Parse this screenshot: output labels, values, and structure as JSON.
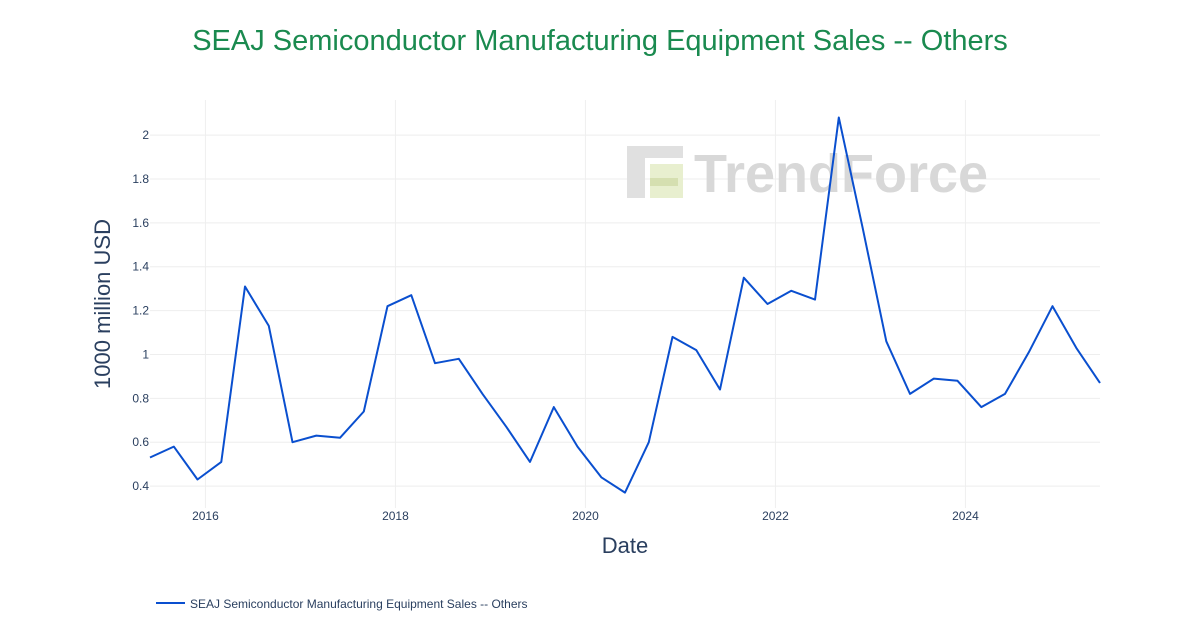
{
  "watermark": {
    "text": "TrendForce"
  },
  "colors": {
    "title": "#1a8a4f",
    "line": "#0a4fcf",
    "text": "#2a3f5f",
    "grid": "#eeeeee",
    "watermark": "#d8d8d8",
    "watermark_accent": "#e8efcf"
  },
  "chart_data": {
    "type": "line",
    "title": "SEAJ Semiconductor Manufacturing Equipment Sales -- Others",
    "xlabel": "Date",
    "ylabel": "1000 million USD",
    "x_ticks": [
      "2016",
      "2018",
      "2020",
      "2022",
      "2024"
    ],
    "y_ticks": [
      "0.4",
      "0.6",
      "0.8",
      "1",
      "1.2",
      "1.4",
      "1.6",
      "1.8",
      "2"
    ],
    "xlim": [
      "2015-06",
      "2025-06"
    ],
    "ylim": [
      0.3,
      2.16
    ],
    "grid": true,
    "legend_position": "bottom-left",
    "series": [
      {
        "name": "SEAJ Semiconductor Manufacturing Equipment Sales -- Others",
        "x": [
          "2015-06",
          "2015-09",
          "2015-12",
          "2016-03",
          "2016-06",
          "2016-09",
          "2016-12",
          "2017-03",
          "2017-06",
          "2017-09",
          "2017-12",
          "2018-03",
          "2018-06",
          "2018-09",
          "2018-12",
          "2019-03",
          "2019-06",
          "2019-09",
          "2019-12",
          "2020-03",
          "2020-06",
          "2020-09",
          "2020-12",
          "2021-03",
          "2021-06",
          "2021-09",
          "2021-12",
          "2022-03",
          "2022-06",
          "2022-09",
          "2022-12",
          "2023-03",
          "2023-06",
          "2023-09",
          "2023-12",
          "2024-03",
          "2024-06",
          "2024-09",
          "2024-12",
          "2025-03",
          "2025-06"
        ],
        "values": [
          0.53,
          0.58,
          0.43,
          0.51,
          1.31,
          1.13,
          0.6,
          0.63,
          0.62,
          0.74,
          1.22,
          1.27,
          0.96,
          0.98,
          0.82,
          0.67,
          0.51,
          0.76,
          0.58,
          0.44,
          0.37,
          0.6,
          1.08,
          1.02,
          0.84,
          1.35,
          1.23,
          1.29,
          1.25,
          2.08,
          1.58,
          1.06,
          0.82,
          0.89,
          0.88,
          0.76,
          0.82,
          1.01,
          1.22,
          1.03,
          0.87
        ]
      }
    ]
  }
}
